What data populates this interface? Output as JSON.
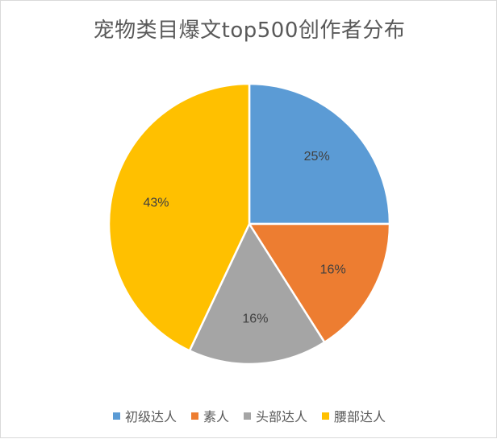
{
  "chart_data": {
    "type": "pie",
    "title": "宠物类目爆文top500创作者分布",
    "categories": [
      "初级达人",
      "素人",
      "头部达人",
      "腰部达人"
    ],
    "values": [
      25,
      16,
      16,
      43
    ],
    "labels": [
      "25%",
      "16%",
      "16%",
      "43%"
    ],
    "colors": [
      "#5B9BD5",
      "#ED7D31",
      "#A5A5A5",
      "#FFC000"
    ],
    "legend_position": "bottom"
  }
}
